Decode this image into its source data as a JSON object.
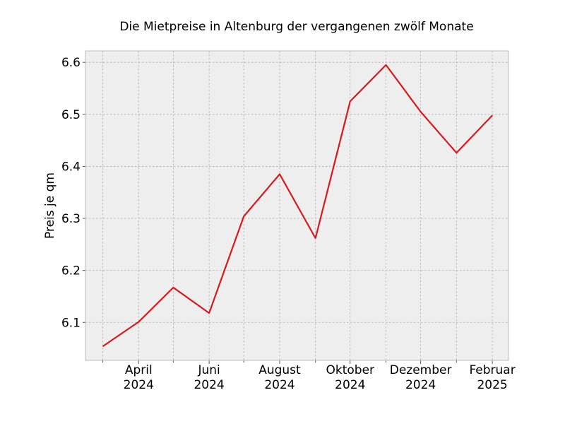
{
  "chart_data": {
    "type": "line",
    "title": "Die Mietpreise in Altenburg der vergangenen zwölf Monate",
    "xlabel": "",
    "ylabel": "Preis je qm",
    "x": [
      "2024-03",
      "2024-04",
      "2024-05",
      "2024-06",
      "2024-07",
      "2024-08",
      "2024-09",
      "2024-10",
      "2024-11",
      "2024-12",
      "2025-01",
      "2025-02"
    ],
    "x_tick_labels": [
      {
        "month": "2024-04",
        "line1": "April",
        "line2": "2024"
      },
      {
        "month": "2024-06",
        "line1": "Juni",
        "line2": "2024"
      },
      {
        "month": "2024-08",
        "line1": "August",
        "line2": "2024"
      },
      {
        "month": "2024-10",
        "line1": "Oktober",
        "line2": "2024"
      },
      {
        "month": "2024-12",
        "line1": "Dezember",
        "line2": "2024"
      },
      {
        "month": "2025-02",
        "line1": "Februar",
        "line2": "2025"
      }
    ],
    "series": [
      {
        "values": [
          6.054,
          6.101,
          6.167,
          6.118,
          6.304,
          6.385,
          6.262,
          6.525,
          6.595,
          6.505,
          6.426,
          6.498
        ],
        "color": "#d7191c"
      }
    ],
    "y_ticks": [
      "6.1",
      "6.2",
      "6.3",
      "6.4",
      "6.5",
      "6.6"
    ],
    "xlim": [
      "2024-02-15",
      "2025-02-15"
    ],
    "ylim": [
      6.027,
      6.622
    ],
    "grid": true,
    "background": "#eeeeee"
  }
}
